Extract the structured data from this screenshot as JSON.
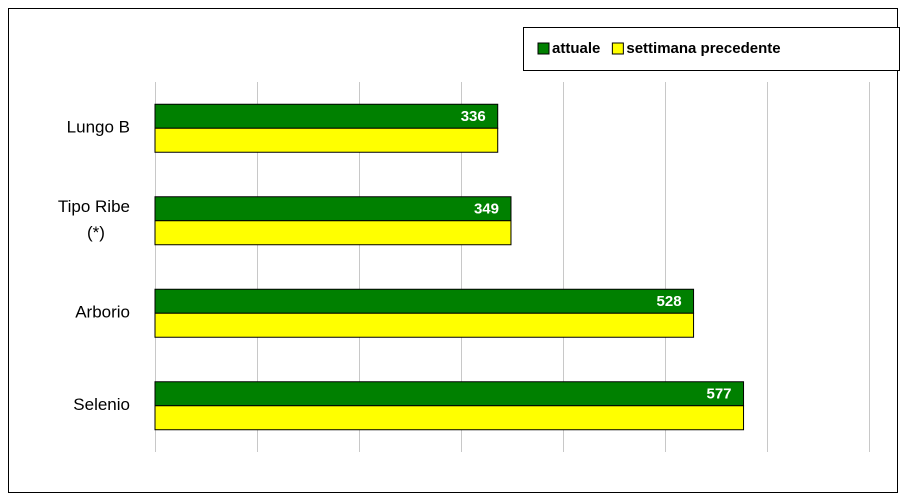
{
  "chart_data": {
    "type": "hbar",
    "categories": [
      "Lungo B",
      "Tipo Ribe (*)",
      "Arborio",
      "Selenio"
    ],
    "series": [
      {
        "name": "attuale",
        "color": "#008000",
        "values": [
          336,
          349,
          528,
          577
        ]
      },
      {
        "name": "settimana precedente",
        "color": "#ffff00",
        "values": [
          336,
          349,
          528,
          577
        ]
      }
    ],
    "xlim": [
      0,
      700
    ],
    "xticks": [
      0,
      100,
      200,
      300,
      400,
      500,
      600,
      700
    ],
    "grid": true,
    "legend": "top-right"
  }
}
